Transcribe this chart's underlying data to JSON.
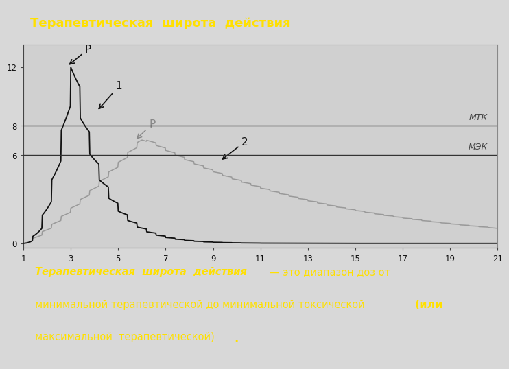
{
  "title": "Терапевтическая  широта  действия",
  "title_color": "#FFE000",
  "title_bg": "#000000",
  "figure_bg": "#d8d8d8",
  "chart_bg": "#d0d0d0",
  "mtk_label": "МТК",
  "mek_label": "МЭК",
  "mtk_y": 8,
  "mek_y": 6,
  "yticks": [
    0,
    6,
    8,
    12
  ],
  "xticks": [
    1,
    3,
    5,
    7,
    9,
    11,
    13,
    15,
    17,
    19,
    21
  ],
  "xlim": [
    1,
    21
  ],
  "ylim": [
    -0.3,
    13.5
  ],
  "curve1_color": "#111111",
  "curve2_color": "#999999",
  "hline_color": "#333333",
  "bottom_bg": "#000000",
  "bottom_text_color": "#FFE000",
  "label_color_dark": "#111111",
  "label_color_gray": "#888888"
}
